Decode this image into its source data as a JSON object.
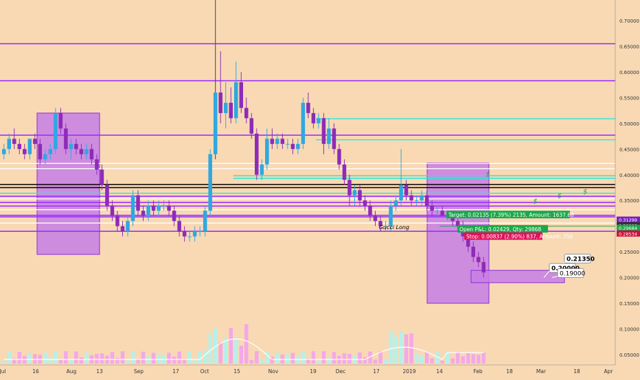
{
  "chart_data": {
    "type": "candlestick",
    "title": "",
    "ylim": [
      0.03,
      0.74
    ],
    "y_ticks": [
      "0.70000",
      "0.65000",
      "0.60000",
      "0.55000",
      "0.50000",
      "0.45000",
      "0.40000",
      "0.35000",
      "0.30000",
      "0.25000",
      "0.20000",
      "0.15000",
      "0.10000",
      "0.05000"
    ],
    "x_ticks": [
      "Jul",
      "16",
      "Aug",
      "13",
      "Sep",
      "17",
      "Oct",
      "15",
      "Nov",
      "19",
      "Dec",
      "17",
      "2019",
      "14",
      "Feb",
      "18",
      "Mar",
      "18",
      "Apr"
    ],
    "horizontal_lines": [
      {
        "value": 0.655,
        "color": "#9b30ff"
      },
      {
        "value": 0.583,
        "color": "#9b30ff"
      },
      {
        "value": 0.477,
        "color": "#9b30ff"
      },
      {
        "value": 0.509,
        "color": "#2ee6d6"
      },
      {
        "value": 0.468,
        "color": "#2ee6d6"
      },
      {
        "value": 0.422,
        "color": "#ffffff"
      },
      {
        "value": 0.412,
        "color": "#ffffff"
      },
      {
        "value": 0.398,
        "color": "#2ee6d6"
      },
      {
        "value": 0.393,
        "color": "#2ee6d6"
      },
      {
        "value": 0.381,
        "color": "#000000"
      },
      {
        "value": 0.375,
        "color": "#000000"
      },
      {
        "value": 0.364,
        "color": "#2ee6d6"
      },
      {
        "value": 0.358,
        "color": "#9b30ff"
      },
      {
        "value": 0.353,
        "color": "#ffffff"
      },
      {
        "value": 0.346,
        "color": "#9b30ff"
      },
      {
        "value": 0.339,
        "color": "#9b30ff"
      },
      {
        "value": 0.332,
        "color": "#ffffff"
      },
      {
        "value": 0.321,
        "color": "#9b30ff"
      },
      {
        "value": 0.318,
        "color": "#9b30ff"
      },
      {
        "value": 0.306,
        "color": "#ffffff"
      },
      {
        "value": 0.29,
        "color": "#9b30ff"
      }
    ],
    "colors": {
      "up": "#2ea8e0",
      "down": "#8e2bb8",
      "volume_up": "#b8f0e8",
      "volume_down": "#f4a8e8",
      "box_fill": "#c77ee6",
      "box_stroke": "#8a2bd8",
      "volume_ma": "#ffffff"
    },
    "annotations": [
      {
        "text": "Gucci Long",
        "x": 0.592,
        "y": 0.294
      },
      {
        "text": "$",
        "x": 0.759,
        "y": 0.397
      },
      {
        "text": "$",
        "x": 0.833,
        "y": 0.344
      },
      {
        "text": "$",
        "x": 0.871,
        "y": 0.355
      },
      {
        "text": "$",
        "x": 0.911,
        "y": 0.363
      }
    ],
    "trade_labels": [
      {
        "text": "Target: 0.02135 (7.39%) 2135, Amount: 1637.68",
        "color": "#1aa84a"
      },
      {
        "text": "Open P&L: 0.02429, Qty: 29868",
        "color": "#1aa84a"
      },
      {
        "text": "Stop: 0.00837 (2.90%) 837, Amount: 750",
        "color": "#e0105a"
      }
    ],
    "price_callouts": [
      "0.21350",
      "0.20000",
      "0.19000"
    ],
    "axis_badges": [
      {
        "text": "0.31299",
        "color": "#7a1fc0"
      },
      {
        "text": "0.30000",
        "color": "#333333"
      },
      {
        "text": "0.29684",
        "color": "#1aa84a"
      },
      {
        "text": "0.28534",
        "color": "#cc1040"
      }
    ],
    "candles": [
      [
        0.44,
        0.46,
        0.43,
        0.45
      ],
      [
        0.45,
        0.48,
        0.44,
        0.47
      ],
      [
        0.47,
        0.49,
        0.45,
        0.46
      ],
      [
        0.46,
        0.47,
        0.44,
        0.45
      ],
      [
        0.45,
        0.46,
        0.43,
        0.44
      ],
      [
        0.44,
        0.47,
        0.43,
        0.47
      ],
      [
        0.47,
        0.48,
        0.45,
        0.46
      ],
      [
        0.46,
        0.47,
        0.42,
        0.43
      ],
      [
        0.43,
        0.45,
        0.42,
        0.44
      ],
      [
        0.44,
        0.46,
        0.43,
        0.45
      ],
      [
        0.45,
        0.53,
        0.44,
        0.52
      ],
      [
        0.52,
        0.53,
        0.48,
        0.49
      ],
      [
        0.49,
        0.5,
        0.44,
        0.45
      ],
      [
        0.45,
        0.47,
        0.43,
        0.46
      ],
      [
        0.46,
        0.47,
        0.44,
        0.45
      ],
      [
        0.45,
        0.46,
        0.43,
        0.44
      ],
      [
        0.44,
        0.46,
        0.43,
        0.45
      ],
      [
        0.45,
        0.46,
        0.42,
        0.43
      ],
      [
        0.43,
        0.44,
        0.4,
        0.41
      ],
      [
        0.41,
        0.42,
        0.37,
        0.38
      ],
      [
        0.38,
        0.39,
        0.33,
        0.34
      ],
      [
        0.34,
        0.35,
        0.31,
        0.32
      ],
      [
        0.32,
        0.33,
        0.29,
        0.3
      ],
      [
        0.3,
        0.31,
        0.28,
        0.29
      ],
      [
        0.29,
        0.32,
        0.28,
        0.31
      ],
      [
        0.31,
        0.37,
        0.3,
        0.36
      ],
      [
        0.36,
        0.37,
        0.32,
        0.33
      ],
      [
        0.33,
        0.34,
        0.31,
        0.32
      ],
      [
        0.32,
        0.35,
        0.31,
        0.34
      ],
      [
        0.34,
        0.35,
        0.32,
        0.33
      ],
      [
        0.33,
        0.35,
        0.32,
        0.34
      ],
      [
        0.34,
        0.35,
        0.33,
        0.34
      ],
      [
        0.34,
        0.35,
        0.32,
        0.33
      ],
      [
        0.33,
        0.34,
        0.3,
        0.31
      ],
      [
        0.31,
        0.32,
        0.28,
        0.29
      ],
      [
        0.29,
        0.3,
        0.27,
        0.28
      ],
      [
        0.28,
        0.29,
        0.27,
        0.28
      ],
      [
        0.28,
        0.3,
        0.27,
        0.29
      ],
      [
        0.29,
        0.3,
        0.28,
        0.29
      ],
      [
        0.29,
        0.34,
        0.28,
        0.33
      ],
      [
        0.33,
        0.45,
        0.32,
        0.44
      ],
      [
        0.44,
        0.74,
        0.43,
        0.56
      ],
      [
        0.56,
        0.64,
        0.5,
        0.52
      ],
      [
        0.52,
        0.58,
        0.49,
        0.54
      ],
      [
        0.54,
        0.57,
        0.5,
        0.51
      ],
      [
        0.51,
        0.62,
        0.5,
        0.58
      ],
      [
        0.58,
        0.6,
        0.52,
        0.53
      ],
      [
        0.53,
        0.55,
        0.5,
        0.51
      ],
      [
        0.51,
        0.52,
        0.47,
        0.48
      ],
      [
        0.48,
        0.49,
        0.39,
        0.4
      ],
      [
        0.4,
        0.43,
        0.39,
        0.42
      ],
      [
        0.42,
        0.49,
        0.41,
        0.47
      ],
      [
        0.47,
        0.49,
        0.45,
        0.46
      ],
      [
        0.46,
        0.48,
        0.45,
        0.47
      ],
      [
        0.47,
        0.48,
        0.45,
        0.46
      ],
      [
        0.46,
        0.47,
        0.45,
        0.46
      ],
      [
        0.46,
        0.47,
        0.44,
        0.45
      ],
      [
        0.45,
        0.47,
        0.44,
        0.46
      ],
      [
        0.46,
        0.55,
        0.45,
        0.54
      ],
      [
        0.54,
        0.56,
        0.51,
        0.52
      ],
      [
        0.52,
        0.53,
        0.49,
        0.5
      ],
      [
        0.5,
        0.52,
        0.49,
        0.51
      ],
      [
        0.51,
        0.52,
        0.44,
        0.46
      ],
      [
        0.46,
        0.51,
        0.45,
        0.49
      ],
      [
        0.49,
        0.5,
        0.44,
        0.45
      ],
      [
        0.45,
        0.46,
        0.41,
        0.42
      ],
      [
        0.42,
        0.43,
        0.38,
        0.39
      ],
      [
        0.39,
        0.4,
        0.34,
        0.36
      ],
      [
        0.36,
        0.38,
        0.34,
        0.37
      ],
      [
        0.37,
        0.38,
        0.34,
        0.35
      ],
      [
        0.35,
        0.36,
        0.33,
        0.34
      ],
      [
        0.34,
        0.35,
        0.31,
        0.32
      ],
      [
        0.32,
        0.33,
        0.3,
        0.31
      ],
      [
        0.31,
        0.32,
        0.29,
        0.3
      ],
      [
        0.3,
        0.31,
        0.29,
        0.3
      ],
      [
        0.3,
        0.35,
        0.29,
        0.34
      ],
      [
        0.34,
        0.36,
        0.33,
        0.35
      ],
      [
        0.35,
        0.45,
        0.34,
        0.38
      ],
      [
        0.38,
        0.39,
        0.35,
        0.36
      ],
      [
        0.36,
        0.37,
        0.34,
        0.35
      ],
      [
        0.35,
        0.36,
        0.34,
        0.35
      ],
      [
        0.35,
        0.37,
        0.34,
        0.36
      ],
      [
        0.36,
        0.37,
        0.33,
        0.34
      ],
      [
        0.34,
        0.35,
        0.32,
        0.33
      ],
      [
        0.33,
        0.34,
        0.32,
        0.33
      ],
      [
        0.33,
        0.34,
        0.32,
        0.32
      ],
      [
        0.32,
        0.33,
        0.31,
        0.32
      ],
      [
        0.32,
        0.33,
        0.3,
        0.31
      ],
      [
        0.31,
        0.32,
        0.29,
        0.3
      ],
      [
        0.3,
        0.31,
        0.27,
        0.28
      ],
      [
        0.28,
        0.29,
        0.25,
        0.26
      ],
      [
        0.26,
        0.27,
        0.23,
        0.24
      ],
      [
        0.24,
        0.25,
        0.22,
        0.23
      ],
      [
        0.23,
        0.24,
        0.2,
        0.21
      ]
    ]
  }
}
